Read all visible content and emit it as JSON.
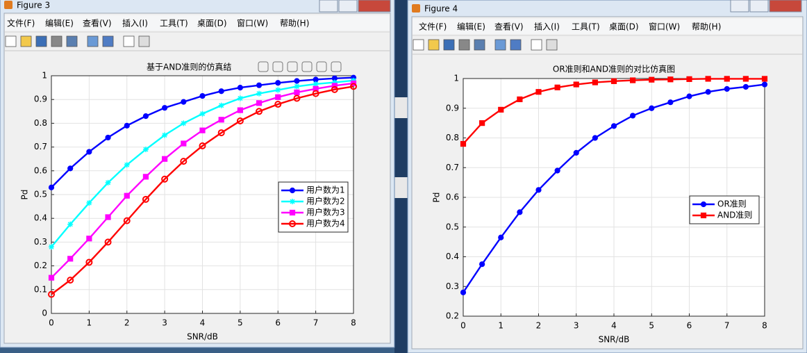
{
  "windows": [
    {
      "title": "Figure 3",
      "menu": [
        "文件(F)",
        "编辑(E)",
        "查看(V)",
        "插入(I)",
        "工具(T)",
        "桌面(D)",
        "窗口(W)",
        "帮助(H)"
      ]
    },
    {
      "title": "Figure 4",
      "menu": [
        "文件(F)",
        "编辑(E)",
        "查看(V)",
        "插入(I)",
        "工具(T)",
        "桌面(D)",
        "窗口(W)",
        "帮助(H)"
      ]
    }
  ],
  "chart_data": [
    {
      "type": "line",
      "title": "基于AND准则的仿真结",
      "x_label": "SNR/dB",
      "y_label": "Pd",
      "x": [
        0,
        0.5,
        1,
        1.5,
        2,
        2.5,
        3,
        3.5,
        4,
        4.5,
        5,
        5.5,
        6,
        6.5,
        7,
        7.5,
        8
      ],
      "xlim": [
        0,
        8
      ],
      "xticks": [
        0,
        1,
        2,
        3,
        4,
        5,
        6,
        7,
        8
      ],
      "ylim": [
        0,
        1
      ],
      "yticks": [
        0,
        0.1,
        0.2,
        0.3,
        0.4,
        0.5,
        0.6,
        0.7,
        0.8,
        0.9,
        1
      ],
      "grid": true,
      "legend": "east",
      "series": [
        {
          "name": "用户数为1",
          "color": "#0000ff",
          "marker": "filled-circle",
          "values": [
            0.53,
            0.61,
            0.68,
            0.74,
            0.79,
            0.83,
            0.865,
            0.89,
            0.915,
            0.935,
            0.95,
            0.96,
            0.97,
            0.978,
            0.984,
            0.989,
            0.992
          ]
        },
        {
          "name": "用户数为2",
          "color": "#00ffff",
          "marker": "star",
          "values": [
            0.28,
            0.375,
            0.465,
            0.55,
            0.625,
            0.69,
            0.75,
            0.8,
            0.84,
            0.875,
            0.905,
            0.925,
            0.94,
            0.955,
            0.965,
            0.972,
            0.98
          ]
        },
        {
          "name": "用户数为3",
          "color": "#ff00ff",
          "marker": "filled-square",
          "values": [
            0.15,
            0.23,
            0.315,
            0.405,
            0.495,
            0.575,
            0.65,
            0.715,
            0.77,
            0.815,
            0.855,
            0.885,
            0.91,
            0.93,
            0.945,
            0.958,
            0.968
          ]
        },
        {
          "name": "用户数为4",
          "color": "#ff0000",
          "marker": "open-circle",
          "values": [
            0.08,
            0.14,
            0.215,
            0.3,
            0.39,
            0.48,
            0.565,
            0.64,
            0.705,
            0.76,
            0.81,
            0.85,
            0.88,
            0.905,
            0.925,
            0.942,
            0.955
          ]
        }
      ]
    },
    {
      "type": "line",
      "title": "OR准则和AND准则的对比仿真图",
      "x_label": "SNR/dB",
      "y_label": "Pd",
      "x": [
        0,
        0.5,
        1,
        1.5,
        2,
        2.5,
        3,
        3.5,
        4,
        4.5,
        5,
        5.5,
        6,
        6.5,
        7,
        7.5,
        8
      ],
      "xlim": [
        0,
        8
      ],
      "xticks": [
        0,
        1,
        2,
        3,
        4,
        5,
        6,
        7,
        8
      ],
      "ylim": [
        0.2,
        1
      ],
      "yticks": [
        0.2,
        0.3,
        0.4,
        0.5,
        0.6,
        0.7,
        0.8,
        0.9,
        1
      ],
      "grid": true,
      "legend": "east",
      "series": [
        {
          "name": "OR准则",
          "color": "#0000ff",
          "marker": "filled-circle",
          "values": [
            0.28,
            0.375,
            0.465,
            0.55,
            0.625,
            0.69,
            0.75,
            0.8,
            0.84,
            0.875,
            0.9,
            0.92,
            0.94,
            0.955,
            0.965,
            0.972,
            0.98
          ]
        },
        {
          "name": "AND准则",
          "color": "#ff0000",
          "marker": "filled-square",
          "values": [
            0.78,
            0.85,
            0.895,
            0.93,
            0.955,
            0.97,
            0.98,
            0.987,
            0.991,
            0.994,
            0.996,
            0.997,
            0.998,
            0.999,
            0.999,
            0.999,
            0.999
          ]
        }
      ]
    }
  ]
}
